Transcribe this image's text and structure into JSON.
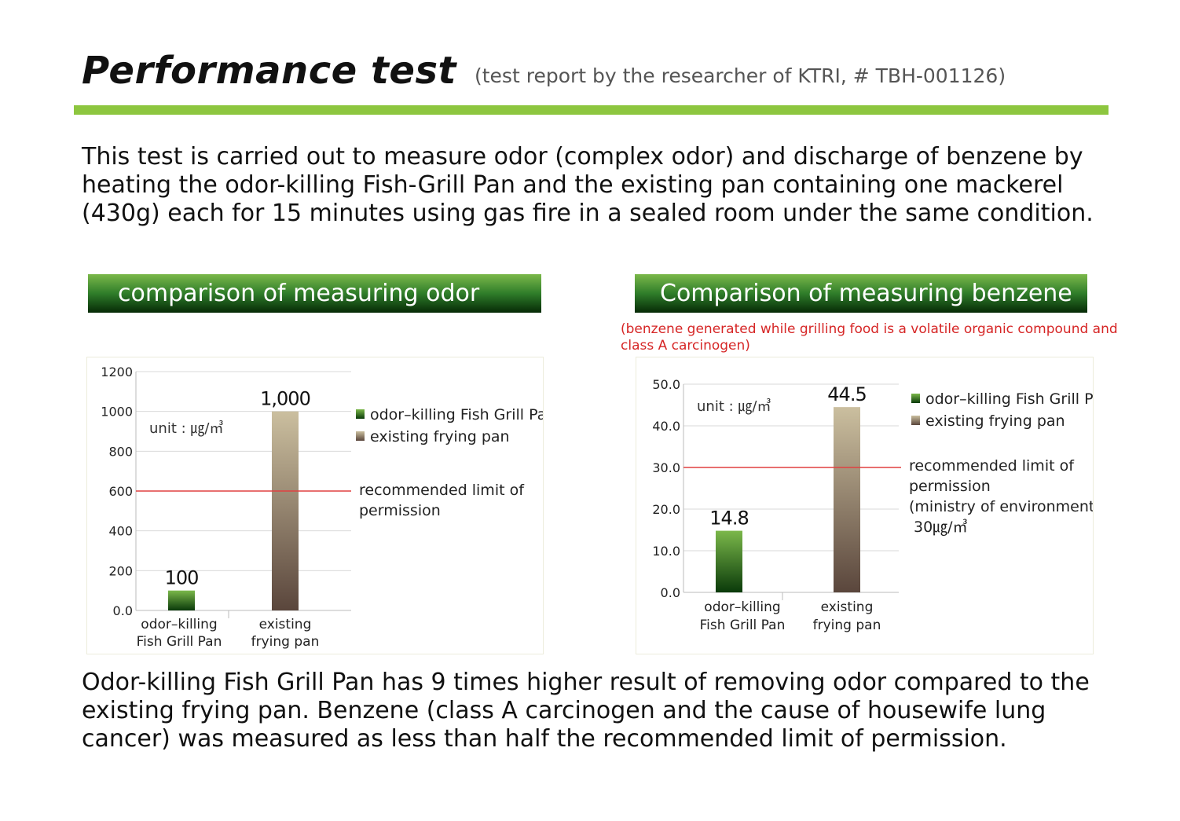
{
  "page": {
    "title": "Performance test",
    "subtitle": "(test report by the researcher of KTRI, # TBH-001126)",
    "intro": "This test is carried out to measure odor (complex odor) and discharge of benzene by heating the odor-killing Fish-Grill Pan and the existing pan containing one mackerel (430g) each for 15 minutes using gas fire in a sealed room under the same condition.",
    "section_odor": "comparison of measuring odor",
    "section_benzene": "Comparison of measuring benzene",
    "benzene_note": "(benzene generated while grilling food is a volatile organic compound and class A carcinogen)",
    "conclusion": "Odor-killing Fish Grill Pan has 9 times higher result of removing odor compared to the existing frying pan. Benzene (class A carcinogen and the cause of housewife lung cancer) was measured as less than half the recommended limit of permission."
  },
  "colors": {
    "accent_rule": "#8dc63f",
    "limit_line": "#e04040",
    "note_text": "#d62626",
    "bar1_top": "#7bb84a",
    "bar1_bottom": "#0a3a0a",
    "bar2_top": "#cbbf9f",
    "bar2_bottom": "#5a463c"
  },
  "chart_data": [
    {
      "type": "bar",
      "categories": [
        [
          "odor–killing",
          "Fish Grill Pan"
        ],
        [
          "existing",
          "frying pan"
        ]
      ],
      "values": [
        100,
        1000
      ],
      "value_labels": [
        "100",
        "1,000"
      ],
      "ylim": [
        0,
        1200
      ],
      "yticks": [
        0,
        200,
        400,
        600,
        800,
        1000,
        1200
      ],
      "ytick_labels": [
        "0.0",
        "200",
        "400",
        "600",
        "800",
        "1000",
        "1200"
      ],
      "unit_label": "unit : ㎍/㎥",
      "legend": [
        "odor–killing Fish Grill Pan",
        "existing frying pan"
      ],
      "legend_position": "right",
      "limit_line": 600,
      "limit_label": [
        "recommended limit of",
        "permission"
      ],
      "grid": true
    },
    {
      "type": "bar",
      "categories": [
        [
          "odor–killing",
          "Fish Grill Pan"
        ],
        [
          "existing",
          "frying pan"
        ]
      ],
      "values": [
        14.8,
        44.5
      ],
      "value_labels": [
        "14.8",
        "44.5"
      ],
      "ylim": [
        0,
        50
      ],
      "yticks": [
        0,
        10,
        20,
        30,
        40,
        50
      ],
      "ytick_labels": [
        "0.0",
        "10.0",
        "20.0",
        "30.0",
        "40.0",
        "50.0"
      ],
      "unit_label": "unit : ㎍/㎥",
      "legend": [
        "odor–killing Fish Grill Pan",
        "existing frying pan"
      ],
      "legend_position": "right",
      "limit_line": 30,
      "limit_label": [
        "recommended limit of",
        "permission",
        "(ministry of environment)",
        "30㎍/㎥"
      ],
      "grid": true
    }
  ]
}
